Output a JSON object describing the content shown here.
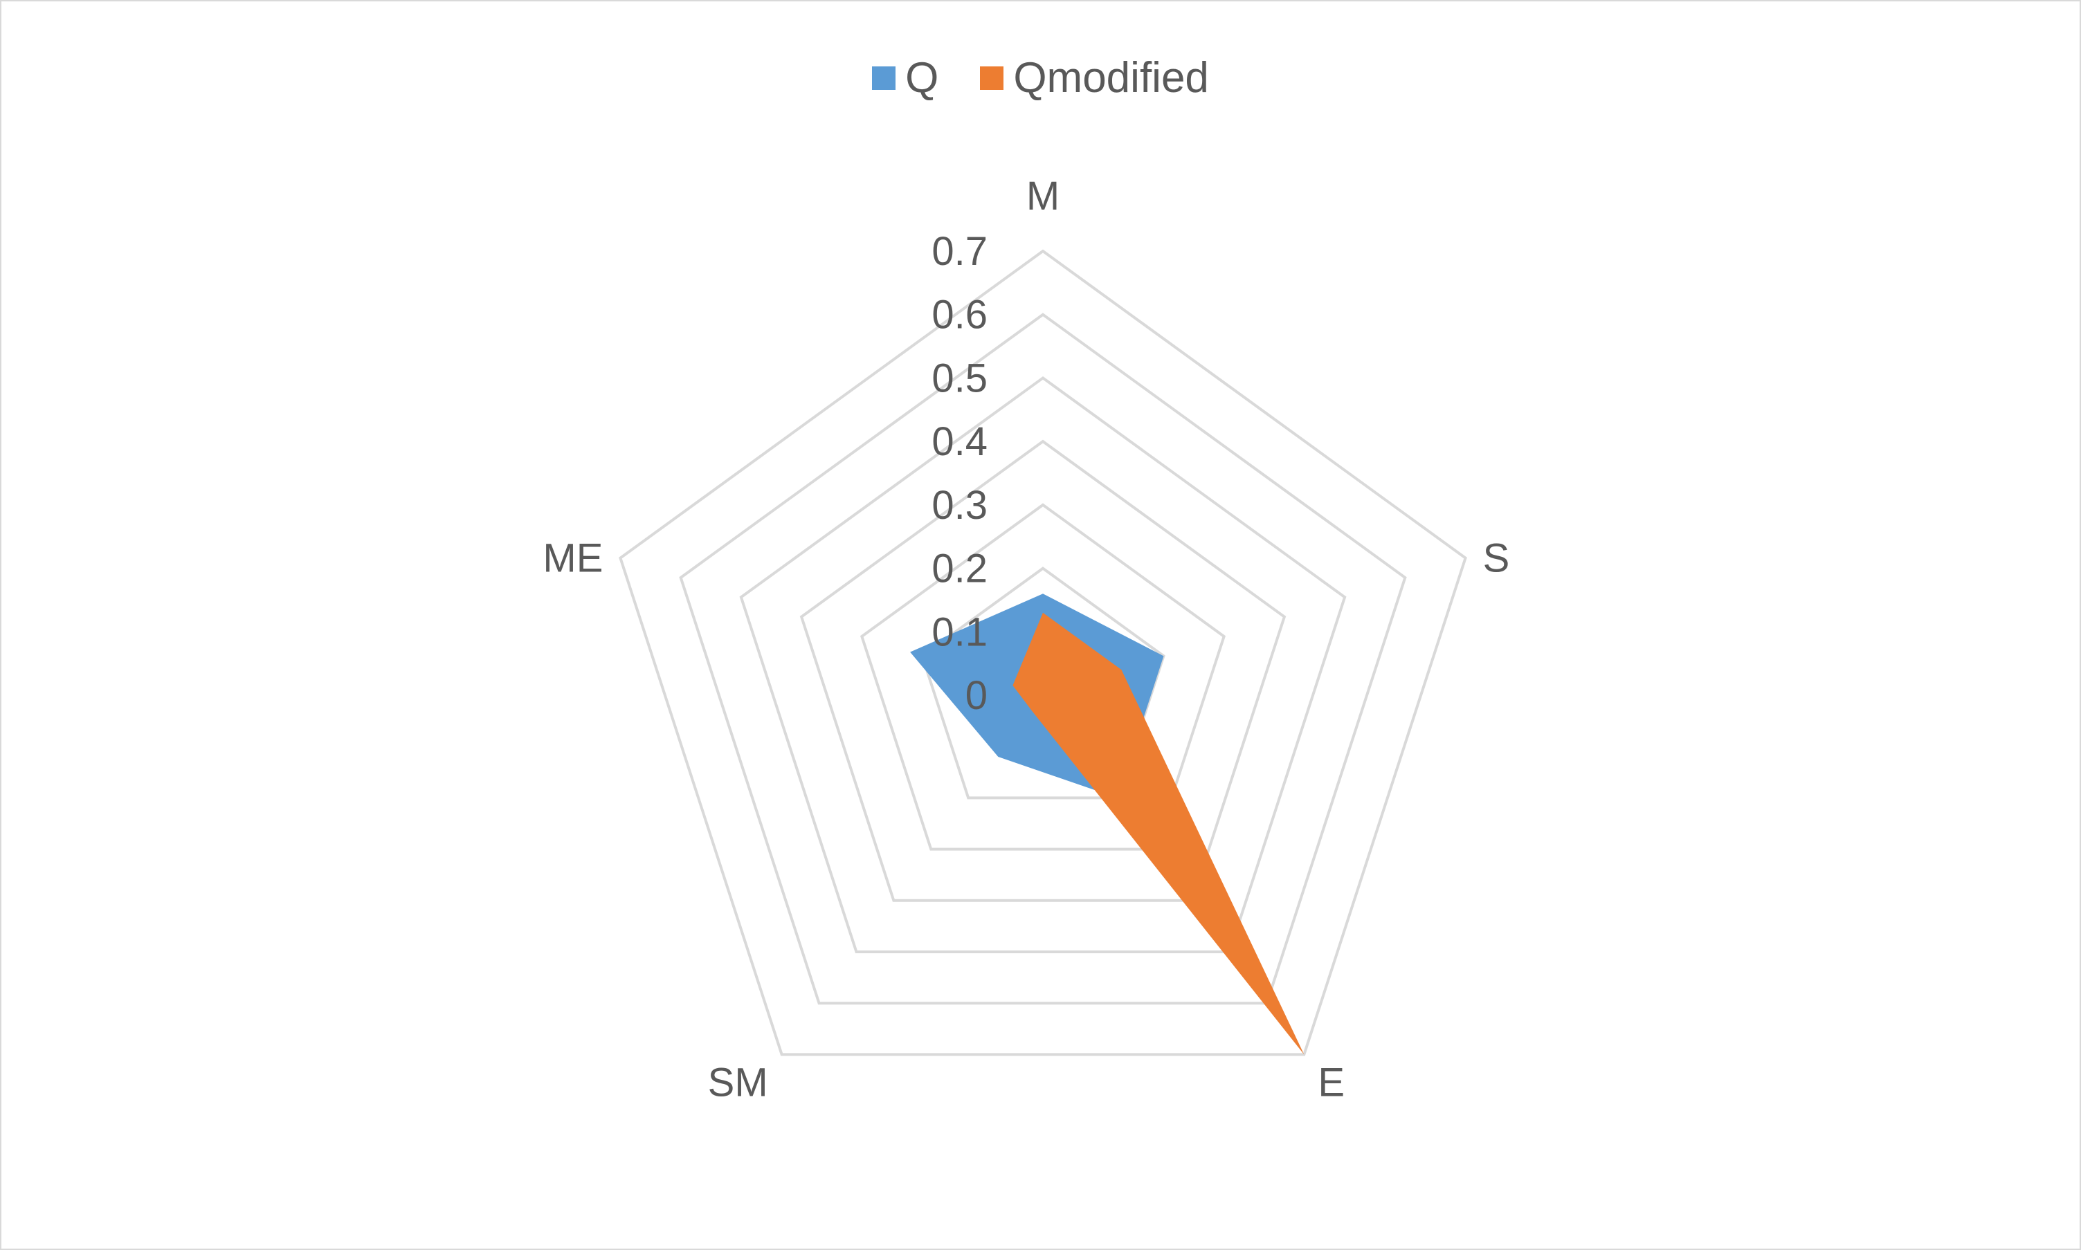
{
  "chart_data": {
    "type": "radar",
    "title": "",
    "categories": [
      "M",
      "S",
      "E",
      "SM",
      "ME"
    ],
    "rlim": [
      0,
      0.7
    ],
    "ticks": [
      "0",
      "0.1",
      "0.2",
      "0.3",
      "0.4",
      "0.5",
      "0.6",
      "0.7"
    ],
    "grid": true,
    "legend_position": "top",
    "series": [
      {
        "name": "Q",
        "color": "#5b9bd5",
        "values": [
          0.16,
          0.2,
          0.2,
          0.12,
          0.22
        ]
      },
      {
        "name": "Qmodified",
        "color": "#ed7d31",
        "values": [
          0.13,
          0.13,
          0.7,
          0.03,
          0.05
        ]
      }
    ]
  },
  "colors": {
    "grid": "#d9d9d9",
    "text": "#595959"
  }
}
